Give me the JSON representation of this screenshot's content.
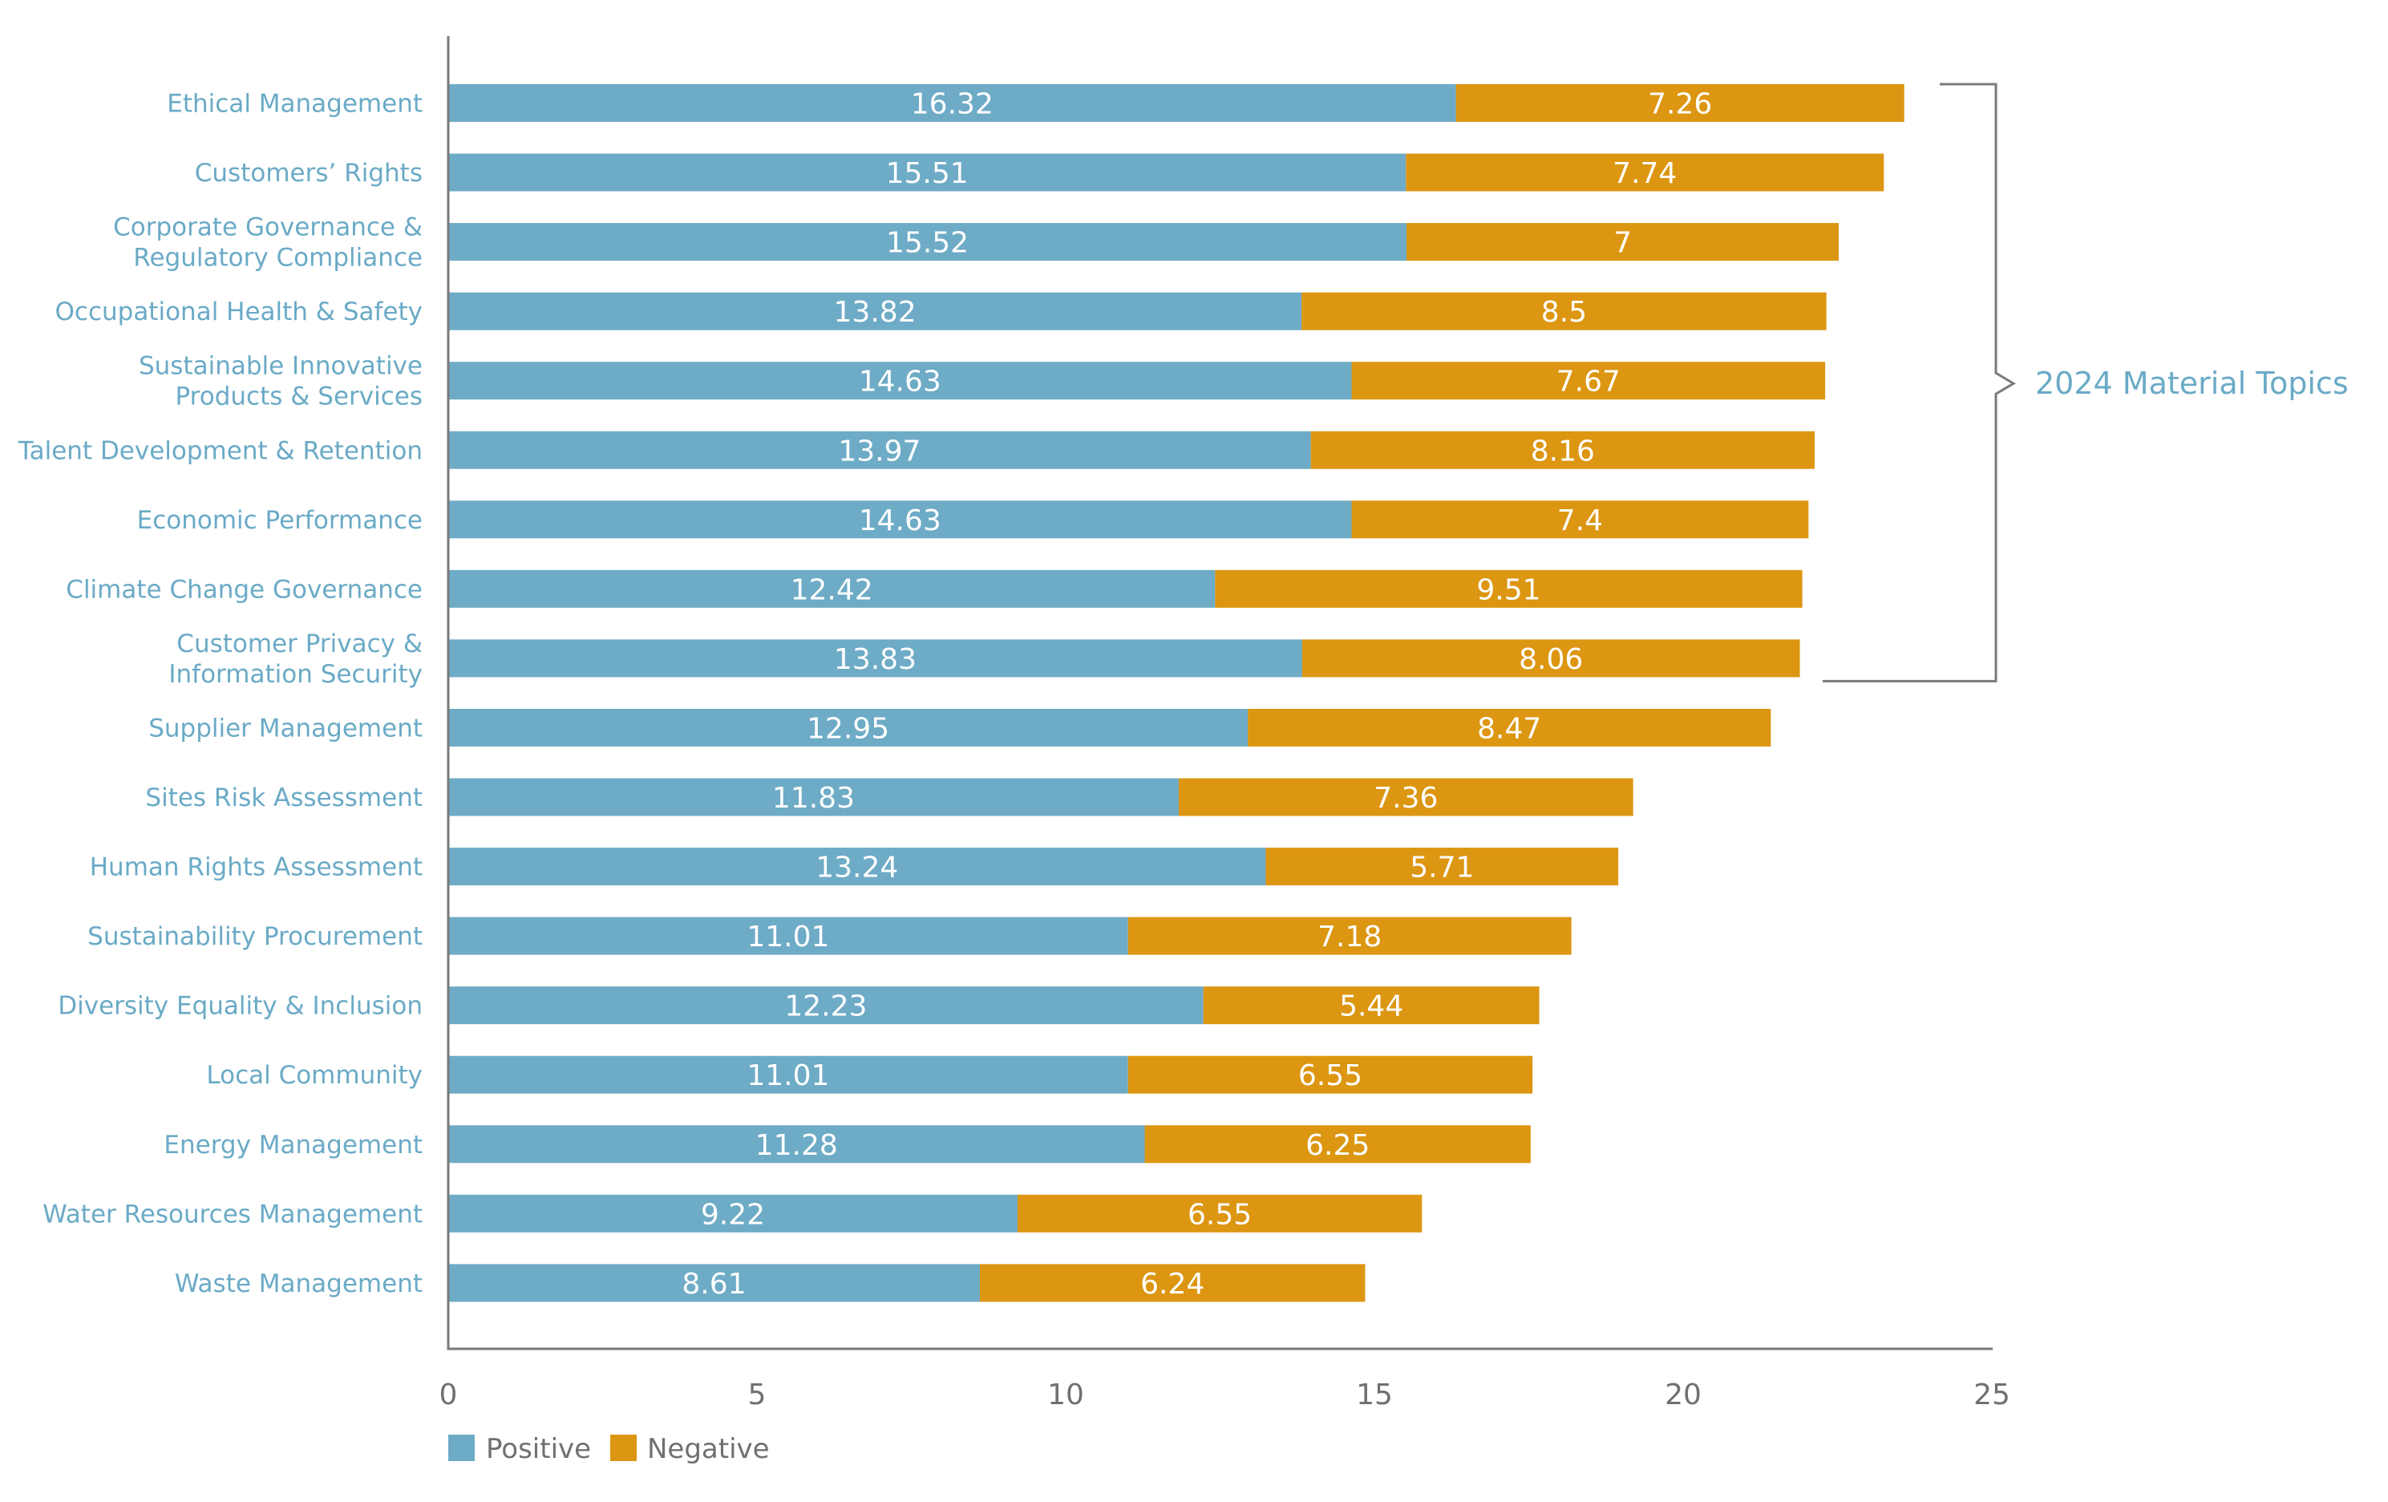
{
  "chart_data": {
    "type": "bar",
    "orientation": "horizontal",
    "stacked": true,
    "title": "",
    "xlabel": "",
    "ylabel": "",
    "xlim": [
      0,
      25
    ],
    "xticks": [
      "0",
      "5",
      "10",
      "15",
      "20",
      "25"
    ],
    "grid": false,
    "legend_position": "bottom-left",
    "categories": [
      [
        "Ethical Management"
      ],
      [
        "Customers’ Rights"
      ],
      [
        "Corporate Governance &",
        "Regulatory Compliance"
      ],
      [
        "Occupational Health & Safety"
      ],
      [
        "Sustainable Innovative",
        "Products & Services"
      ],
      [
        "Talent Development & Retention"
      ],
      [
        "Economic Performance"
      ],
      [
        "Climate Change Governance"
      ],
      [
        "Customer Privacy &",
        "Information Security"
      ],
      [
        "Supplier Management"
      ],
      [
        "Sites Risk Assessment"
      ],
      [
        "Human Rights Assessment"
      ],
      [
        "Sustainability Procurement"
      ],
      [
        "Diversity Equality & Inclusion"
      ],
      [
        "Local Community"
      ],
      [
        "Energy Management"
      ],
      [
        "Water Resources Management"
      ],
      [
        "Waste Management"
      ]
    ],
    "series": [
      {
        "name": "Positive",
        "color": "#6eabc6",
        "values": [
          16.32,
          15.51,
          15.52,
          13.82,
          14.63,
          13.97,
          14.63,
          12.42,
          13.83,
          12.95,
          11.83,
          13.24,
          11.01,
          12.23,
          11.01,
          11.28,
          9.22,
          8.61
        ],
        "labels": [
          "16.32",
          "15.51",
          "15.52",
          "13.82",
          "14.63",
          "13.97",
          "14.63",
          "12.42",
          "13.83",
          "12.95",
          "11.83",
          "13.24",
          "11.01",
          "12.23",
          "11.01",
          "11.28",
          "9.22",
          "8.61"
        ]
      },
      {
        "name": "Negative",
        "color": "#dc9611",
        "values": [
          7.26,
          7.74,
          7,
          8.5,
          7.67,
          8.16,
          7.4,
          9.51,
          8.06,
          8.47,
          7.36,
          5.71,
          7.18,
          5.44,
          6.55,
          6.25,
          6.55,
          6.24
        ],
        "labels": [
          "7.26",
          "7.74",
          "7",
          "8.5",
          "7.67",
          "8.16",
          "7.4",
          "9.51",
          "8.06",
          "8.47",
          "7.36",
          "5.71",
          "7.18",
          "5.44",
          "6.55",
          "6.25",
          "6.55",
          "6.24"
        ]
      }
    ],
    "annotations": [
      {
        "type": "bracket",
        "text": "2024 Material Topics",
        "from_category_index": 0,
        "to_category_index": 8
      }
    ]
  },
  "colors": {
    "positive": "#6eabc6",
    "negative": "#dc9611",
    "axis": "#7a7a7a",
    "category_text": "#6aaac6",
    "tick_text": "#707070"
  }
}
